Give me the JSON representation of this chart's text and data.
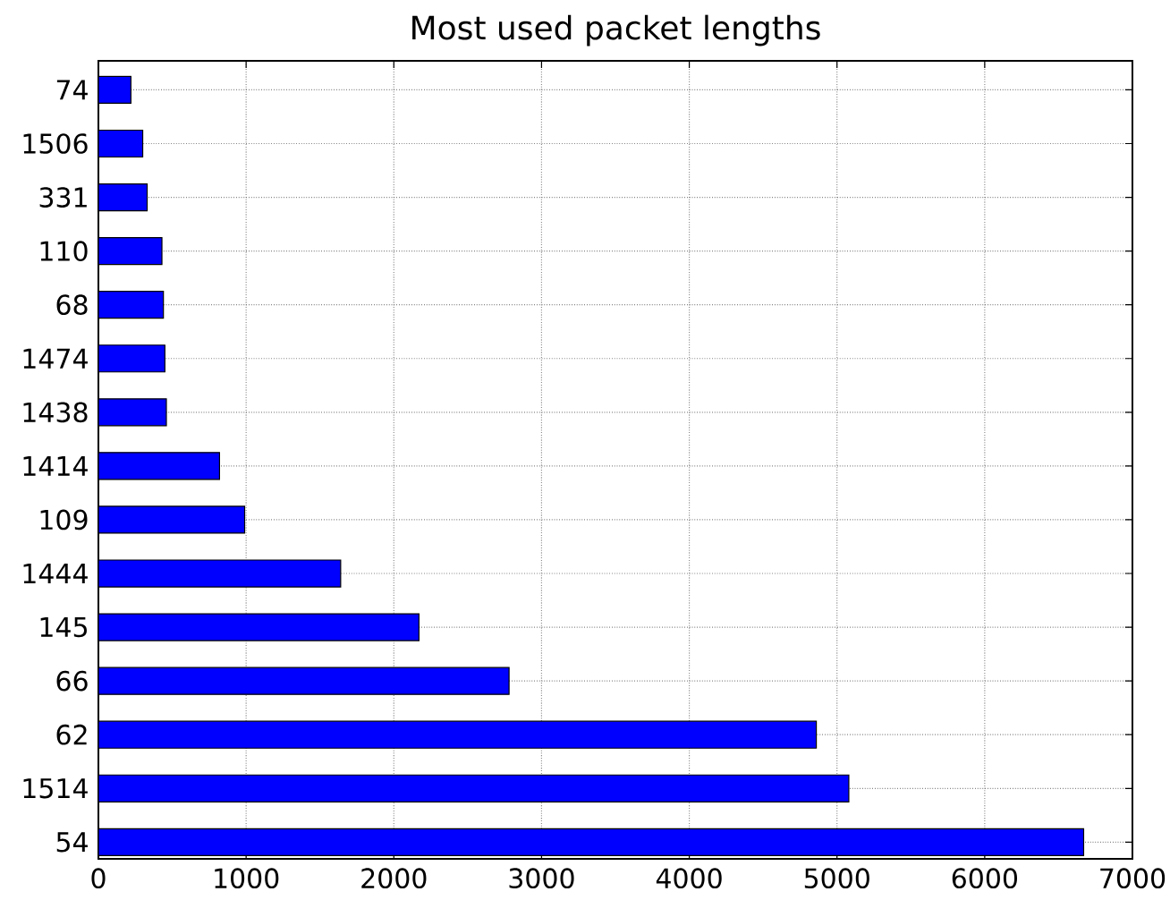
{
  "chart_data": {
    "type": "bar",
    "orientation": "horizontal",
    "title": "Most used packet lengths",
    "categories": [
      "74",
      "1506",
      "331",
      "110",
      "68",
      "1474",
      "1438",
      "1414",
      "109",
      "1444",
      "145",
      "66",
      "62",
      "1514",
      "54"
    ],
    "values": [
      220,
      300,
      330,
      430,
      440,
      450,
      460,
      820,
      990,
      1640,
      2170,
      2780,
      4860,
      5080,
      6670
    ],
    "color": "#0000ff",
    "xlim": [
      0,
      7000
    ],
    "xticks": [
      0,
      1000,
      2000,
      3000,
      4000,
      5000,
      6000,
      7000
    ],
    "grid": true
  }
}
